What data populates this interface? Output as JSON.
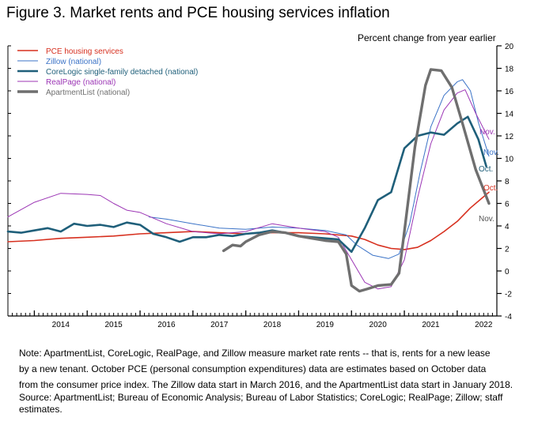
{
  "figure": {
    "title": "Figure 3. Market rents and PCE housing services inflation",
    "note_lines": [
      "Note: ApartmentList, CoreLogic, RealPage, and Zillow measure market rate rents -- that is, rents for a new lease",
      "by a new tenant. October PCE (personal consumption expenditures) data are estimates based on October data",
      "from the consumer price index. The Zillow data start in March 2016, and the ApartmentList data start in January 2018."
    ],
    "source": "Source: ApartmentList; Bureau of Economic Analysis; Bureau of Labor Statistics; CoreLogic; RealPage; Zillow; staff estimates."
  },
  "chart_data": {
    "type": "line",
    "title": "Figure 3. Market rents and PCE housing services inflation",
    "ylabel": "Percent change from year earlier",
    "ylim": [
      -4,
      20
    ],
    "yticks": [
      -4,
      -2,
      0,
      2,
      4,
      6,
      8,
      10,
      12,
      14,
      16,
      18,
      20
    ],
    "xlim": [
      2013.5,
      2022.75
    ],
    "xticks": [
      "2014",
      "2015",
      "2016",
      "2017",
      "2018",
      "2019",
      "2020",
      "2021",
      "2022"
    ],
    "y_axis_side": "right",
    "legend_position": "top-left",
    "grid": false,
    "series": [
      {
        "name": "PCE housing services",
        "color": "#d7301f",
        "end_label": "Oct.",
        "points": [
          [
            2013.5,
            2.6
          ],
          [
            2014.0,
            2.7
          ],
          [
            2014.5,
            2.9
          ],
          [
            2015.0,
            3.0
          ],
          [
            2015.5,
            3.1
          ],
          [
            2016.0,
            3.3
          ],
          [
            2016.5,
            3.4
          ],
          [
            2017.0,
            3.5
          ],
          [
            2017.5,
            3.4
          ],
          [
            2018.0,
            3.3
          ],
          [
            2018.5,
            3.4
          ],
          [
            2019.0,
            3.4
          ],
          [
            2019.5,
            3.3
          ],
          [
            2020.0,
            3.1
          ],
          [
            2020.25,
            2.8
          ],
          [
            2020.5,
            2.3
          ],
          [
            2020.75,
            2.0
          ],
          [
            2021.0,
            1.9
          ],
          [
            2021.25,
            2.1
          ],
          [
            2021.5,
            2.7
          ],
          [
            2021.75,
            3.5
          ],
          [
            2022.0,
            4.4
          ],
          [
            2022.25,
            5.6
          ],
          [
            2022.5,
            6.6
          ],
          [
            2022.6,
            7.0
          ]
        ]
      },
      {
        "name": "Zillow (national)",
        "color": "#3b73c7",
        "end_label": "Nov.",
        "points": [
          [
            2016.17,
            4.8
          ],
          [
            2016.5,
            4.6
          ],
          [
            2017.0,
            4.2
          ],
          [
            2017.5,
            3.8
          ],
          [
            2018.0,
            3.7
          ],
          [
            2018.5,
            3.9
          ],
          [
            2019.0,
            3.8
          ],
          [
            2019.5,
            3.6
          ],
          [
            2019.9,
            3.2
          ],
          [
            2020.1,
            2.3
          ],
          [
            2020.4,
            1.4
          ],
          [
            2020.7,
            1.1
          ],
          [
            2020.9,
            1.5
          ],
          [
            2021.1,
            4.2
          ],
          [
            2021.3,
            8.8
          ],
          [
            2021.5,
            12.8
          ],
          [
            2021.75,
            15.6
          ],
          [
            2022.0,
            16.8
          ],
          [
            2022.1,
            17.0
          ],
          [
            2022.25,
            16.0
          ],
          [
            2022.4,
            13.2
          ],
          [
            2022.6,
            10.2
          ]
        ]
      },
      {
        "name": "CoreLogic single-family detached (national)",
        "color": "#1f5f7a",
        "end_label": "Oct.",
        "points": [
          [
            2013.5,
            3.5
          ],
          [
            2013.75,
            3.4
          ],
          [
            2014.0,
            3.6
          ],
          [
            2014.25,
            3.8
          ],
          [
            2014.5,
            3.5
          ],
          [
            2014.75,
            4.2
          ],
          [
            2015.0,
            4.0
          ],
          [
            2015.25,
            4.1
          ],
          [
            2015.5,
            3.9
          ],
          [
            2015.75,
            4.3
          ],
          [
            2016.0,
            4.1
          ],
          [
            2016.25,
            3.3
          ],
          [
            2016.5,
            3.0
          ],
          [
            2016.75,
            2.6
          ],
          [
            2017.0,
            3.0
          ],
          [
            2017.25,
            3.0
          ],
          [
            2017.5,
            3.2
          ],
          [
            2017.75,
            3.1
          ],
          [
            2018.0,
            3.3
          ],
          [
            2018.25,
            3.4
          ],
          [
            2018.5,
            3.6
          ],
          [
            2018.75,
            3.4
          ],
          [
            2019.0,
            3.1
          ],
          [
            2019.25,
            3.0
          ],
          [
            2019.5,
            2.9
          ],
          [
            2019.75,
            2.8
          ],
          [
            2020.0,
            1.7
          ],
          [
            2020.25,
            3.8
          ],
          [
            2020.5,
            6.3
          ],
          [
            2020.75,
            7.0
          ],
          [
            2021.0,
            10.9
          ],
          [
            2021.25,
            12.0
          ],
          [
            2021.5,
            12.3
          ],
          [
            2021.75,
            12.1
          ],
          [
            2022.0,
            13.1
          ],
          [
            2022.2,
            13.7
          ],
          [
            2022.4,
            11.7
          ],
          [
            2022.55,
            9.3
          ]
        ]
      },
      {
        "name": "RealPage (national)",
        "color": "#9c36b5",
        "end_label": "Nov.",
        "points": [
          [
            2013.5,
            4.8
          ],
          [
            2014.0,
            6.1
          ],
          [
            2014.5,
            6.9
          ],
          [
            2015.0,
            6.8
          ],
          [
            2015.25,
            6.7
          ],
          [
            2015.5,
            6.0
          ],
          [
            2015.75,
            5.4
          ],
          [
            2016.0,
            5.2
          ],
          [
            2016.5,
            4.2
          ],
          [
            2017.0,
            3.5
          ],
          [
            2017.5,
            3.3
          ],
          [
            2018.0,
            3.5
          ],
          [
            2018.5,
            4.2
          ],
          [
            2019.0,
            3.8
          ],
          [
            2019.5,
            3.5
          ],
          [
            2019.75,
            3.0
          ],
          [
            2020.0,
            1.0
          ],
          [
            2020.25,
            -1.0
          ],
          [
            2020.5,
            -1.6
          ],
          [
            2020.75,
            -1.4
          ],
          [
            2021.0,
            1.0
          ],
          [
            2021.25,
            6.5
          ],
          [
            2021.5,
            11.3
          ],
          [
            2021.75,
            14.3
          ],
          [
            2022.0,
            15.8
          ],
          [
            2022.15,
            16.1
          ],
          [
            2022.35,
            14.0
          ],
          [
            2022.6,
            11.7
          ]
        ]
      },
      {
        "name": "ApartmentList (national)",
        "color": "#6f6f6f",
        "end_label": "Nov.",
        "points": [
          [
            2017.58,
            1.8
          ],
          [
            2017.75,
            2.3
          ],
          [
            2017.9,
            2.2
          ],
          [
            2018.0,
            2.6
          ],
          [
            2018.25,
            3.2
          ],
          [
            2018.5,
            3.5
          ],
          [
            2018.75,
            3.4
          ],
          [
            2019.0,
            3.1
          ],
          [
            2019.25,
            2.9
          ],
          [
            2019.5,
            2.7
          ],
          [
            2019.75,
            2.6
          ],
          [
            2019.9,
            1.5
          ],
          [
            2020.0,
            -1.3
          ],
          [
            2020.15,
            -1.8
          ],
          [
            2020.3,
            -1.6
          ],
          [
            2020.5,
            -1.3
          ],
          [
            2020.75,
            -1.2
          ],
          [
            2020.9,
            -0.2
          ],
          [
            2021.0,
            3.5
          ],
          [
            2021.2,
            11.0
          ],
          [
            2021.4,
            16.5
          ],
          [
            2021.5,
            17.9
          ],
          [
            2021.7,
            17.8
          ],
          [
            2021.9,
            16.3
          ],
          [
            2022.1,
            13.1
          ],
          [
            2022.35,
            9.0
          ],
          [
            2022.6,
            6.0
          ]
        ]
      }
    ]
  }
}
